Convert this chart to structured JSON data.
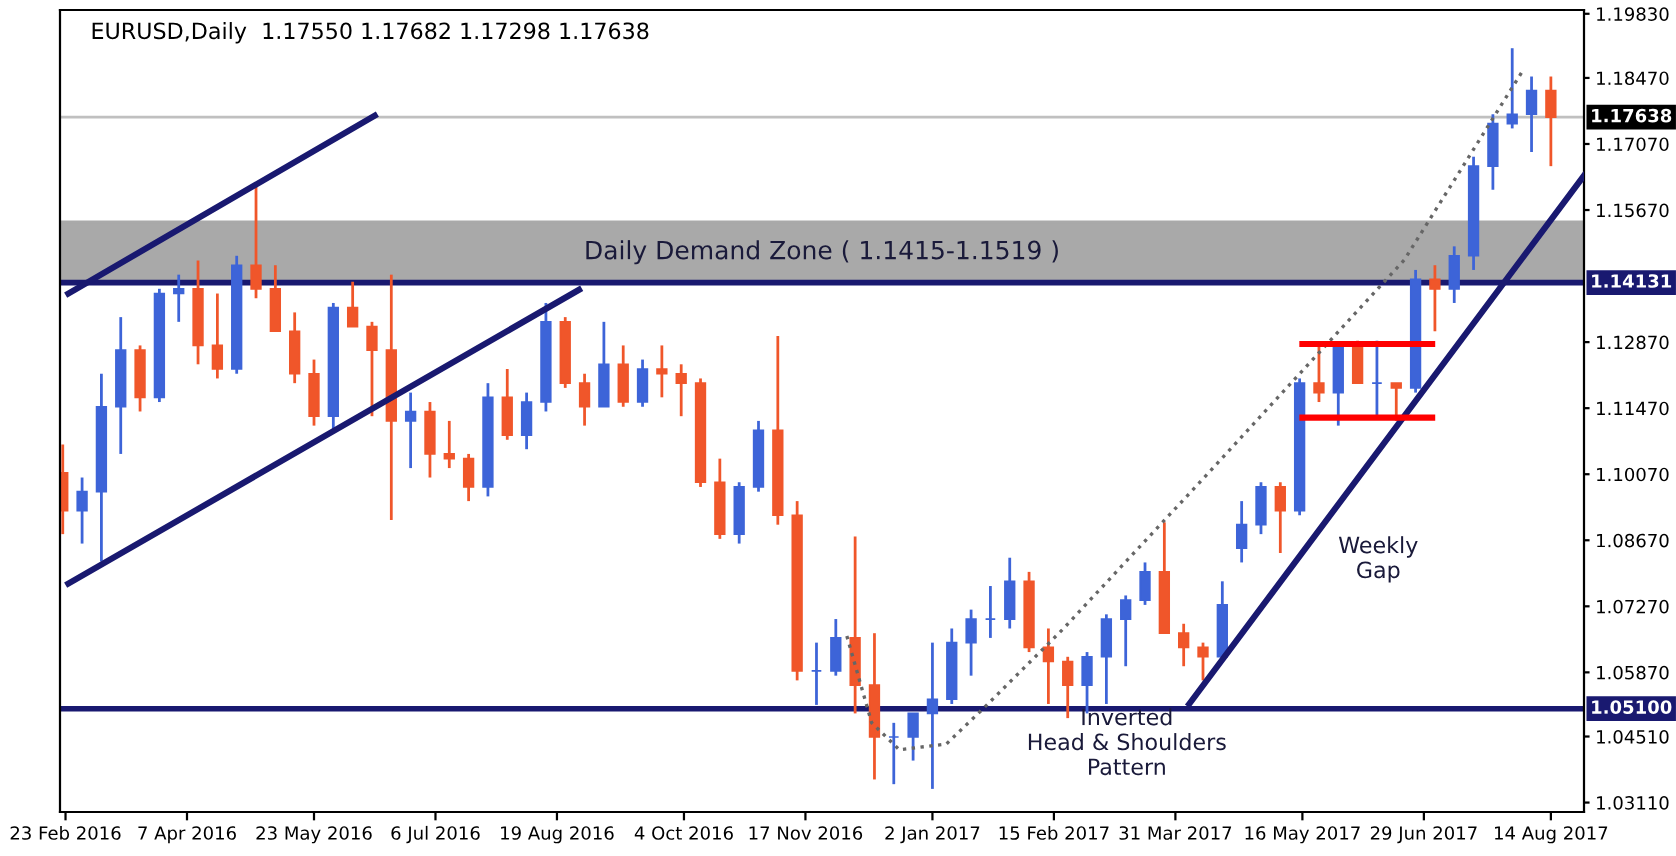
{
  "chart_data": {
    "type": "candlestick",
    "title": "EURUSD,Daily  1.17550 1.17682 1.17298 1.17638",
    "x": [
      "2016-02-22",
      "2016-02-29",
      "2016-03-07",
      "2016-03-14",
      "2016-03-21",
      "2016-03-28",
      "2016-04-04",
      "2016-04-11",
      "2016-04-18",
      "2016-04-25",
      "2016-05-02",
      "2016-05-09",
      "2016-05-16",
      "2016-05-23",
      "2016-05-30",
      "2016-06-06",
      "2016-06-13",
      "2016-06-20",
      "2016-06-27",
      "2016-07-04",
      "2016-07-11",
      "2016-07-18",
      "2016-07-25",
      "2016-08-01",
      "2016-08-08",
      "2016-08-15",
      "2016-08-22",
      "2016-08-29",
      "2016-09-05",
      "2016-09-12",
      "2016-09-19",
      "2016-09-26",
      "2016-10-03",
      "2016-10-10",
      "2016-10-17",
      "2016-10-24",
      "2016-10-31",
      "2016-11-07",
      "2016-11-14",
      "2016-11-21",
      "2016-11-28",
      "2016-12-05",
      "2016-12-12",
      "2016-12-19",
      "2016-12-26",
      "2017-01-02",
      "2017-01-09",
      "2017-01-16",
      "2017-01-23",
      "2017-01-30",
      "2017-02-06",
      "2017-02-13",
      "2017-02-20",
      "2017-02-27",
      "2017-03-06",
      "2017-03-13",
      "2017-03-20",
      "2017-03-27",
      "2017-04-03",
      "2017-04-10",
      "2017-04-17",
      "2017-04-24",
      "2017-05-01",
      "2017-05-08",
      "2017-05-15",
      "2017-05-22",
      "2017-05-29",
      "2017-06-05",
      "2017-06-12",
      "2017-06-19",
      "2017-06-26",
      "2017-07-03",
      "2017-07-10",
      "2017-07-17",
      "2017-07-24",
      "2017-07-31",
      "2017-08-07",
      "2017-08-14"
    ],
    "ohlc": [
      [
        1.101,
        1.107,
        1.088,
        1.093
      ],
      [
        1.093,
        1.1,
        1.086,
        1.097
      ],
      [
        1.097,
        1.122,
        1.0822,
        1.115
      ],
      [
        1.115,
        1.134,
        1.105,
        1.127
      ],
      [
        1.127,
        1.128,
        1.114,
        1.117
      ],
      [
        1.117,
        1.14,
        1.116,
        1.139
      ],
      [
        1.139,
        1.143,
        1.133,
        1.14
      ],
      [
        1.14,
        1.146,
        1.124,
        1.128
      ],
      [
        1.128,
        1.139,
        1.121,
        1.123
      ],
      [
        1.123,
        1.147,
        1.122,
        1.145
      ],
      [
        1.145,
        1.1616,
        1.138,
        1.14
      ],
      [
        1.14,
        1.145,
        1.131,
        1.131
      ],
      [
        1.131,
        1.135,
        1.12,
        1.122
      ],
      [
        1.122,
        1.125,
        1.111,
        1.113
      ],
      [
        1.113,
        1.137,
        1.11,
        1.136
      ],
      [
        1.136,
        1.1415,
        1.132,
        1.132
      ],
      [
        1.132,
        1.133,
        1.113,
        1.127
      ],
      [
        1.127,
        1.143,
        1.091,
        1.112
      ],
      [
        1.112,
        1.118,
        1.102,
        1.114
      ],
      [
        1.114,
        1.116,
        1.1,
        1.105
      ],
      [
        1.105,
        1.112,
        1.102,
        1.104
      ],
      [
        1.104,
        1.105,
        1.095,
        1.098
      ],
      [
        1.098,
        1.12,
        1.096,
        1.117
      ],
      [
        1.117,
        1.123,
        1.108,
        1.109
      ],
      [
        1.109,
        1.118,
        1.106,
        1.116
      ],
      [
        1.116,
        1.137,
        1.114,
        1.133
      ],
      [
        1.133,
        1.134,
        1.119,
        1.12
      ],
      [
        1.12,
        1.122,
        1.111,
        1.115
      ],
      [
        1.115,
        1.133,
        1.115,
        1.124
      ],
      [
        1.124,
        1.128,
        1.115,
        1.116
      ],
      [
        1.116,
        1.125,
        1.115,
        1.123
      ],
      [
        1.123,
        1.128,
        1.117,
        1.122
      ],
      [
        1.122,
        1.124,
        1.113,
        1.12
      ],
      [
        1.12,
        1.121,
        1.098,
        1.099
      ],
      [
        1.099,
        1.104,
        1.087,
        1.088
      ],
      [
        1.088,
        1.099,
        1.086,
        1.098
      ],
      [
        1.098,
        1.112,
        1.097,
        1.11
      ],
      [
        1.11,
        1.13,
        1.09,
        1.092
      ],
      [
        1.092,
        1.095,
        1.057,
        1.059
      ],
      [
        1.059,
        1.065,
        1.0518,
        1.059
      ],
      [
        1.059,
        1.07,
        1.058,
        1.066
      ],
      [
        1.066,
        1.0875,
        1.05,
        1.056
      ],
      [
        1.056,
        1.067,
        1.036,
        1.045
      ],
      [
        1.045,
        1.048,
        1.035,
        1.045
      ],
      [
        1.045,
        1.05,
        1.04,
        1.05
      ],
      [
        1.05,
        1.065,
        1.034,
        1.053
      ],
      [
        1.053,
        1.068,
        1.052,
        1.065
      ],
      [
        1.065,
        1.072,
        1.058,
        1.07
      ],
      [
        1.07,
        1.077,
        1.066,
        1.07
      ],
      [
        1.07,
        1.083,
        1.068,
        1.078
      ],
      [
        1.078,
        1.08,
        1.063,
        1.064
      ],
      [
        1.064,
        1.068,
        1.052,
        1.061
      ],
      [
        1.061,
        1.062,
        1.049,
        1.056
      ],
      [
        1.056,
        1.063,
        1.05,
        1.062
      ],
      [
        1.062,
        1.071,
        1.052,
        1.07
      ],
      [
        1.07,
        1.075,
        1.06,
        1.074
      ],
      [
        1.074,
        1.082,
        1.073,
        1.08
      ],
      [
        1.08,
        1.0905,
        1.067,
        1.067
      ],
      [
        1.067,
        1.069,
        1.06,
        1.064
      ],
      [
        1.064,
        1.065,
        1.057,
        1.062
      ],
      [
        1.062,
        1.078,
        1.061,
        1.073
      ],
      [
        1.085,
        1.095,
        1.082,
        1.09
      ],
      [
        1.09,
        1.099,
        1.088,
        1.098
      ],
      [
        1.098,
        1.099,
        1.084,
        1.093
      ],
      [
        1.093,
        1.121,
        1.092,
        1.12
      ],
      [
        1.12,
        1.128,
        1.116,
        1.118
      ],
      [
        1.118,
        1.128,
        1.111,
        1.128
      ],
      [
        1.128,
        1.129,
        1.12,
        1.12
      ],
      [
        1.12,
        1.129,
        1.113,
        1.12
      ],
      [
        1.12,
        1.12,
        1.112,
        1.119
      ],
      [
        1.119,
        1.144,
        1.118,
        1.142
      ],
      [
        1.142,
        1.145,
        1.131,
        1.14
      ],
      [
        1.14,
        1.149,
        1.137,
        1.147
      ],
      [
        1.147,
        1.168,
        1.144,
        1.166
      ],
      [
        1.166,
        1.177,
        1.161,
        1.175
      ],
      [
        1.175,
        1.191,
        1.174,
        1.177
      ],
      [
        1.177,
        1.185,
        1.169,
        1.182
      ],
      [
        1.182,
        1.185,
        1.166,
        1.17638
      ]
    ],
    "colors": [
      "#f0562a",
      "#3d64d8",
      "#3d64d8",
      "#3d64d8",
      "#f0562a",
      "#3d64d8",
      "#3d64d8",
      "#f0562a",
      "#f0562a",
      "#3d64d8",
      "#f0562a",
      "#f0562a",
      "#f0562a",
      "#f0562a",
      "#3d64d8",
      "#f0562a",
      "#f0562a",
      "#f0562a",
      "#3d64d8",
      "#f0562a",
      "#f0562a",
      "#f0562a",
      "#3d64d8",
      "#f0562a",
      "#3d64d8",
      "#3d64d8",
      "#f0562a",
      "#f0562a",
      "#3d64d8",
      "#f0562a",
      "#3d64d8",
      "#f0562a",
      "#f0562a",
      "#f0562a",
      "#f0562a",
      "#3d64d8",
      "#3d64d8",
      "#f0562a",
      "#f0562a",
      "#3d64d8",
      "#3d64d8",
      "#f0562a",
      "#f0562a",
      "#3d64d8",
      "#3d64d8",
      "#3d64d8",
      "#3d64d8",
      "#3d64d8",
      "#3d64d8",
      "#3d64d8",
      "#f0562a",
      "#f0562a",
      "#f0562a",
      "#3d64d8",
      "#3d64d8",
      "#3d64d8",
      "#3d64d8",
      "#f0562a",
      "#f0562a",
      "#f0562a",
      "#3d64d8",
      "#3d64d8",
      "#3d64d8",
      "#f0562a",
      "#3d64d8",
      "#f0562a",
      "#3d64d8",
      "#f0562a",
      "#3d64d8",
      "#f0562a",
      "#3d64d8",
      "#f0562a",
      "#3d64d8",
      "#3d64d8",
      "#3d64d8",
      "#3d64d8",
      "#3d64d8",
      "#f0562a"
    ],
    "series": [
      {
        "type": "line",
        "x": [
          "2016-02-24",
          "2016-06-14"
        ],
        "values": [
          1.139,
          1.1767
        ],
        "color": "#191970",
        "line_style": "solid"
      },
      {
        "type": "line",
        "x": [
          "2016-02-24",
          "2016-08-27"
        ],
        "values": [
          1.0775,
          1.1398
        ],
        "color": "#191970",
        "line_style": "solid"
      },
      {
        "type": "line",
        "x": [
          "2017-04-05",
          "2017-08-26"
        ],
        "values": [
          1.052,
          1.164
        ],
        "color": "#191970",
        "line_style": "solid"
      },
      {
        "type": "line",
        "x": [
          "2016-12-02",
          "2016-12-11",
          "2016-12-21",
          "2017-01-07",
          "2017-01-20",
          "2017-02-18",
          "2017-04-13",
          "2017-06-22",
          "2017-08-04"
        ],
        "values": [
          1.0664,
          1.048,
          1.0423,
          1.0435,
          1.0508,
          1.0677,
          1.1016,
          1.1462,
          1.1864
        ],
        "color": "#666666",
        "line_style": "dotted"
      },
      {
        "type": "line",
        "x": [
          "2017-05-16",
          "2017-07-02"
        ],
        "values": [
          1.1283,
          1.1283
        ],
        "color": "#ff0000",
        "line_style": "solid"
      },
      {
        "type": "line",
        "x": [
          "2017-05-16",
          "2017-07-02"
        ],
        "values": [
          1.1127,
          1.1127
        ],
        "color": "#ff0000",
        "line_style": "solid"
      }
    ],
    "xlim": [
      "2016-02-21",
      "2017-08-26"
    ],
    "xticks": [
      {
        "value": "2016-02-23",
        "label": "23 Feb 2016"
      },
      {
        "value": "2016-04-07",
        "label": "7 Apr 2016"
      },
      {
        "value": "2016-05-23",
        "label": "23 May 2016"
      },
      {
        "value": "2016-07-06",
        "label": "6 Jul 2016"
      },
      {
        "value": "2016-08-19",
        "label": "19 Aug 2016"
      },
      {
        "value": "2016-10-04",
        "label": "4 Oct 2016"
      },
      {
        "value": "2016-11-17",
        "label": "17 Nov 2016"
      },
      {
        "value": "2017-01-02",
        "label": "2 Jan 2017"
      },
      {
        "value": "2017-02-15",
        "label": "15 Feb 2017"
      },
      {
        "value": "2017-03-31",
        "label": "31 Mar 2017"
      },
      {
        "value": "2017-05-16",
        "label": "16 May 2017"
      },
      {
        "value": "2017-06-29",
        "label": "29 Jun 2017"
      },
      {
        "value": "2017-08-14",
        "label": "14 Aug 2017"
      }
    ],
    "ylim": [
      1.0291,
      1.1991
    ],
    "yticks": [
      {
        "value": 1.1983,
        "label": "1.19830"
      },
      {
        "value": 1.1847,
        "label": "1.18470"
      },
      {
        "value": 1.1707,
        "label": "1.17070"
      },
      {
        "value": 1.1567,
        "label": "1.15670"
      },
      {
        "value": 1.1287,
        "label": "1.12870"
      },
      {
        "value": 1.1147,
        "label": "1.11470"
      },
      {
        "value": 1.1007,
        "label": "1.10070"
      },
      {
        "value": 1.0867,
        "label": "1.08670"
      },
      {
        "value": 1.0727,
        "label": "1.07270"
      },
      {
        "value": 1.0587,
        "label": "1.05870"
      },
      {
        "value": 1.0451,
        "label": "1.04510"
      },
      {
        "value": 1.0311,
        "label": "1.03110"
      }
    ],
    "ref_lines": [
      {
        "axis": "y",
        "value": 1.17638,
        "label": "1.17638",
        "color": "#c0c0c0"
      },
      {
        "axis": "y",
        "value": 1.14131,
        "label": "1.14131",
        "color": "#191970"
      },
      {
        "axis": "y",
        "value": 1.051,
        "label": "1.05100",
        "color": "#191970"
      }
    ],
    "bands": [
      {
        "axis": "y",
        "from": 1.14131,
        "to": 1.1542,
        "label": "Daily Demand Zone ( 1.1415-1.1519 )",
        "color": "#a9a9a9"
      }
    ],
    "annotations": [
      "Weekly\nGap",
      "Inverted\nHead & Shoulders\nPattern"
    ],
    "grid": false,
    "legend": false
  }
}
